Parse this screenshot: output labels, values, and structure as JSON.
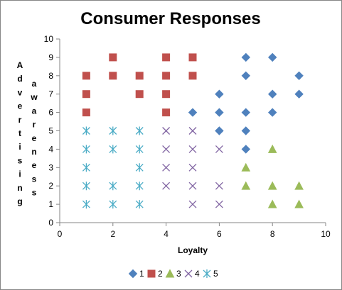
{
  "chart_data": {
    "type": "scatter",
    "title": "Consumer Responses",
    "xlabel": "Loyalty",
    "ylabel_lines": [
      "Advertising",
      "awareness"
    ],
    "xlim": [
      0,
      10
    ],
    "ylim": [
      0,
      10
    ],
    "xticks": [
      "0",
      "2",
      "4",
      "6",
      "8",
      "10"
    ],
    "yticks": [
      "0",
      "1",
      "2",
      "3",
      "4",
      "5",
      "6",
      "7",
      "8",
      "9",
      "10"
    ],
    "grid": false,
    "legend_position": "bottom",
    "series": [
      {
        "name": "1",
        "marker": "diamond",
        "color": "#4F81BD",
        "points": [
          [
            7,
            9
          ],
          [
            8,
            9
          ],
          [
            7,
            8
          ],
          [
            9,
            8
          ],
          [
            6,
            7
          ],
          [
            8,
            7
          ],
          [
            9,
            7
          ],
          [
            5,
            6
          ],
          [
            6,
            6
          ],
          [
            7,
            6
          ],
          [
            8,
            6
          ],
          [
            6,
            5
          ],
          [
            7,
            5
          ],
          [
            7,
            4
          ]
        ]
      },
      {
        "name": "2",
        "marker": "square",
        "color": "#C0504D",
        "points": [
          [
            2,
            9
          ],
          [
            4,
            9
          ],
          [
            5,
            9
          ],
          [
            1,
            8
          ],
          [
            2,
            8
          ],
          [
            3,
            8
          ],
          [
            4,
            8
          ],
          [
            5,
            8
          ],
          [
            1,
            7
          ],
          [
            3,
            7
          ],
          [
            4,
            7
          ],
          [
            1,
            6
          ],
          [
            4,
            6
          ]
        ]
      },
      {
        "name": "3",
        "marker": "triangle",
        "color": "#9BBB59",
        "points": [
          [
            8,
            4
          ],
          [
            7,
            3
          ],
          [
            7,
            2
          ],
          [
            8,
            2
          ],
          [
            9,
            2
          ],
          [
            8,
            1
          ],
          [
            9,
            1
          ]
        ]
      },
      {
        "name": "4",
        "marker": "x",
        "color": "#8064A2",
        "points": [
          [
            4,
            5
          ],
          [
            5,
            5
          ],
          [
            4,
            4
          ],
          [
            5,
            4
          ],
          [
            6,
            4
          ],
          [
            4,
            3
          ],
          [
            5,
            3
          ],
          [
            4,
            2
          ],
          [
            5,
            2
          ],
          [
            6,
            2
          ],
          [
            5,
            1
          ],
          [
            6,
            1
          ]
        ]
      },
      {
        "name": "5",
        "marker": "asterisk",
        "color": "#4BACC6",
        "points": [
          [
            1,
            5
          ],
          [
            2,
            5
          ],
          [
            3,
            5
          ],
          [
            1,
            4
          ],
          [
            2,
            4
          ],
          [
            3,
            4
          ],
          [
            1,
            3
          ],
          [
            3,
            3
          ],
          [
            1,
            2
          ],
          [
            2,
            2
          ],
          [
            3,
            2
          ],
          [
            1,
            1
          ],
          [
            2,
            1
          ],
          [
            3,
            1
          ]
        ]
      }
    ]
  }
}
